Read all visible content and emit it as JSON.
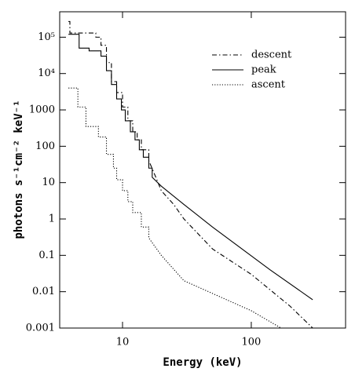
{
  "chart_data": {
    "type": "line",
    "log_x": true,
    "log_y": true,
    "drawstyle": "steps",
    "xlabel": "Energy (keV)",
    "ylabel": "photons s⁻¹cm⁻² keV⁻¹",
    "xlim": [
      3.25,
      540
    ],
    "ylim": [
      0.001,
      500000
    ],
    "xticks": [
      10,
      100
    ],
    "yticks": [
      0.001,
      0.01,
      0.1,
      1,
      10,
      100,
      1000,
      {
        "value": 10000,
        "label": "10⁴"
      },
      {
        "value": 100000,
        "label": "10⁵"
      }
    ],
    "legend": "upper right",
    "series": [
      {
        "name": "descent",
        "color": "#000000",
        "dash": "dashdot",
        "x": [
          3.8,
          3.9,
          3.9,
          6.2,
          6.2,
          6.8,
          6.8,
          7.5,
          7.5,
          8.2,
          8.2,
          9,
          9,
          10,
          10,
          11,
          11,
          12,
          12,
          13,
          13,
          14,
          14,
          16,
          16,
          18,
          20,
          25,
          30,
          50,
          100,
          200,
          300
        ],
        "values": [
          270000,
          270000,
          130000,
          130000,
          100000,
          100000,
          60000,
          60000,
          20000,
          20000,
          6000,
          6000,
          3000,
          3000,
          1200,
          1200,
          500,
          500,
          250,
          250,
          150,
          150,
          80,
          80,
          40,
          15,
          6,
          2.5,
          1,
          0.15,
          0.03,
          0.004,
          0.001
        ]
      },
      {
        "name": "peak",
        "color": "#000000",
        "dash": "solid",
        "x": [
          3.8,
          4.6,
          4.6,
          5.5,
          5.5,
          6.8,
          6.8,
          7.5,
          7.5,
          8.2,
          8.2,
          9,
          9,
          9.8,
          9.8,
          10.5,
          10.5,
          11.5,
          11.5,
          12.5,
          12.5,
          13.5,
          13.5,
          14.5,
          14.5,
          16,
          16,
          17,
          17,
          20,
          30,
          50,
          140,
          300
        ],
        "values": [
          120000,
          120000,
          50000,
          50000,
          42000,
          42000,
          30000,
          30000,
          12000,
          12000,
          5000,
          5000,
          2000,
          2000,
          1000,
          1000,
          500,
          500,
          250,
          250,
          150,
          150,
          80,
          80,
          50,
          50,
          25,
          25,
          14,
          8,
          2.5,
          0.6,
          0.04,
          0.006
        ]
      },
      {
        "name": "ascent",
        "color": "#000000",
        "dash": "dotted",
        "x": [
          3.8,
          4.5,
          4.5,
          5.2,
          5.2,
          6.5,
          6.5,
          7.5,
          7.5,
          8.5,
          8.5,
          9,
          9,
          10,
          10,
          11,
          11,
          12,
          12,
          14,
          14,
          16,
          16,
          20,
          30,
          100,
          170
        ],
        "values": [
          4000,
          4000,
          1200,
          1200,
          350,
          350,
          180,
          180,
          60,
          60,
          25,
          25,
          12,
          12,
          6,
          6,
          3,
          3,
          1.5,
          1.5,
          0.6,
          0.6,
          0.3,
          0.1,
          0.02,
          0.003,
          0.001
        ]
      }
    ]
  }
}
